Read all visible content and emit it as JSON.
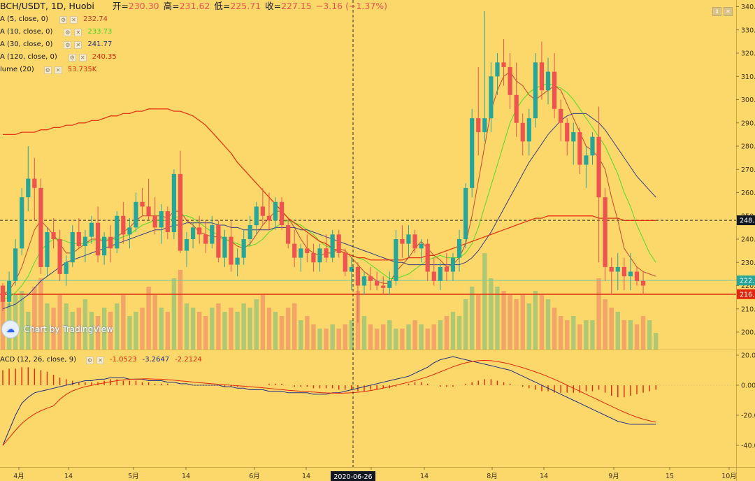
{
  "header": {
    "symbol": "BCH/USDT, 1D, Huobi",
    "open_label": "开=",
    "open": "230.30",
    "high_label": "高=",
    "high": "231.62",
    "low_label": "低=",
    "low": "225.71",
    "close_label": "收=",
    "close": "227.15",
    "change": "−3.16 (−1.37%)"
  },
  "legends": [
    {
      "label": "A (5, close, 0)",
      "value": "232.74",
      "color": "#c0392b"
    },
    {
      "label": "A (10, close, 0)",
      "value": "233.73",
      "color": "#3ddc1e"
    },
    {
      "label": "A (30, close, 0)",
      "value": "241.77",
      "color": "#1f2d8a"
    },
    {
      "label": "A (120, close, 0)",
      "value": "240.35",
      "color": "#e2270c"
    },
    {
      "label": "lume (20)",
      "value": "53.735K",
      "color": "#e2270c"
    }
  ],
  "macd_legend": {
    "label": "ACD (12, 26, close, 9)",
    "values": [
      "-1.0523",
      "-3.2647",
      "-2.2124"
    ],
    "colors": [
      "#e2270c",
      "#1f2d8a",
      "#e2270c"
    ]
  },
  "watermark": "Chart by TradingView",
  "price_axis": {
    "ticks": [
      200,
      210,
      220,
      230,
      240,
      250,
      260,
      270,
      280,
      290,
      300,
      310,
      320,
      330,
      340
    ],
    "labels": [
      "200.",
      "210.",
      "220.",
      "230.",
      "240.",
      "250.",
      "260.",
      "270.",
      "280.",
      "290.",
      "300.",
      "310.",
      "320.",
      "330.",
      "340."
    ],
    "badges": [
      {
        "label": "248.",
        "value": 248.1,
        "bg": "#131722",
        "fg": "#ffffff"
      },
      {
        "label": "222.",
        "value": 222.2,
        "bg": "#26a69a",
        "fg": "#ffffff"
      },
      {
        "label": "216.",
        "value": 216.3,
        "bg": "#e2270c",
        "fg": "#ffffff"
      }
    ]
  },
  "macd_axis": {
    "ticks": [
      20,
      0,
      -20,
      -40
    ],
    "labels": [
      "20.00",
      "0.00",
      "-20.0",
      "-40.0"
    ]
  },
  "time_axis": {
    "labels": [
      "4月",
      "14",
      "5月",
      "14",
      "6月",
      "14",
      "7月",
      "14",
      "8月",
      "14",
      "9月",
      "15",
      "10月"
    ],
    "crosshair_label": "2020-06-26"
  },
  "lines": {
    "hline_price": 248.1,
    "support_price": 216.3,
    "last_price": 222.2
  },
  "chart_data": {
    "type": "candlestick",
    "title": "BCH/USDT, 1D, Huobi",
    "ylim": [
      190,
      345
    ],
    "candles": [
      [
        220,
        221,
        209,
        213
      ],
      [
        213,
        226,
        211,
        222
      ],
      [
        222,
        240,
        220,
        236
      ],
      [
        236,
        262,
        233,
        258
      ],
      [
        258,
        280,
        252,
        266
      ],
      [
        266,
        275,
        248,
        262
      ],
      [
        262,
        266,
        225,
        228
      ],
      [
        228,
        245,
        224,
        243
      ],
      [
        243,
        249,
        236,
        240
      ],
      [
        240,
        244,
        222,
        225
      ],
      [
        225,
        233,
        220,
        230
      ],
      [
        230,
        246,
        228,
        243
      ],
      [
        243,
        249,
        236,
        237
      ],
      [
        237,
        244,
        230,
        241
      ],
      [
        241,
        250,
        238,
        247
      ],
      [
        247,
        254,
        230,
        233
      ],
      [
        233,
        243,
        229,
        241
      ],
      [
        241,
        246,
        230,
        236
      ],
      [
        236,
        252,
        234,
        250
      ],
      [
        250,
        256,
        238,
        242
      ],
      [
        242,
        249,
        236,
        245
      ],
      [
        245,
        260,
        243,
        256
      ],
      [
        256,
        262,
        250,
        254
      ],
      [
        254,
        266,
        248,
        250
      ],
      [
        250,
        258,
        242,
        245
      ],
      [
        245,
        255,
        238,
        252
      ],
      [
        252,
        254,
        240,
        243
      ],
      [
        243,
        270,
        240,
        268
      ],
      [
        268,
        278,
        234,
        235
      ],
      [
        235,
        243,
        228,
        240
      ],
      [
        240,
        247,
        236,
        245
      ],
      [
        245,
        250,
        238,
        242
      ],
      [
        242,
        248,
        234,
        238
      ],
      [
        238,
        250,
        236,
        246
      ],
      [
        246,
        248,
        230,
        232
      ],
      [
        232,
        244,
        228,
        241
      ],
      [
        241,
        248,
        226,
        229
      ],
      [
        229,
        236,
        224,
        232
      ],
      [
        232,
        244,
        229,
        240
      ],
      [
        240,
        250,
        237,
        246
      ],
      [
        246,
        256,
        242,
        254
      ],
      [
        254,
        262,
        246,
        250
      ],
      [
        250,
        260,
        244,
        248
      ],
      [
        248,
        258,
        244,
        256
      ],
      [
        256,
        258,
        244,
        246
      ],
      [
        246,
        249,
        236,
        238
      ],
      [
        238,
        244,
        228,
        232
      ],
      [
        232,
        238,
        226,
        236
      ],
      [
        236,
        242,
        230,
        234
      ],
      [
        234,
        238,
        226,
        230
      ],
      [
        230,
        238,
        226,
        236
      ],
      [
        236,
        242,
        230,
        232
      ],
      [
        232,
        244,
        230,
        242
      ],
      [
        242,
        244,
        232,
        234
      ],
      [
        234,
        236,
        224,
        226
      ],
      [
        226,
        232,
        218,
        228
      ],
      [
        228,
        230,
        204,
        220
      ],
      [
        220,
        226,
        216,
        224
      ],
      [
        224,
        228,
        218,
        222
      ],
      [
        222,
        226,
        218,
        220
      ],
      [
        220,
        224,
        216,
        219
      ],
      [
        219,
        226,
        216,
        222
      ],
      [
        222,
        244,
        220,
        240
      ],
      [
        240,
        246,
        232,
        238
      ],
      [
        238,
        246,
        232,
        242
      ],
      [
        242,
        244,
        234,
        236
      ],
      [
        236,
        240,
        230,
        238
      ],
      [
        238,
        240,
        222,
        226
      ],
      [
        226,
        232,
        220,
        222
      ],
      [
        222,
        230,
        218,
        228
      ],
      [
        228,
        234,
        222,
        226
      ],
      [
        226,
        234,
        222,
        232
      ],
      [
        232,
        244,
        226,
        240
      ],
      [
        240,
        264,
        236,
        262
      ],
      [
        262,
        296,
        258,
        292
      ],
      [
        292,
        314,
        276,
        286
      ],
      [
        286,
        338,
        282,
        292
      ],
      [
        292,
        316,
        286,
        310
      ],
      [
        310,
        320,
        302,
        316
      ],
      [
        316,
        326,
        306,
        314
      ],
      [
        314,
        320,
        296,
        302
      ],
      [
        302,
        316,
        284,
        290
      ],
      [
        290,
        294,
        276,
        282
      ],
      [
        282,
        296,
        276,
        292
      ],
      [
        292,
        320,
        288,
        316
      ],
      [
        316,
        325,
        300,
        304
      ],
      [
        304,
        318,
        298,
        312
      ],
      [
        312,
        320,
        292,
        296
      ],
      [
        296,
        300,
        282,
        290
      ],
      [
        290,
        292,
        276,
        282
      ],
      [
        282,
        290,
        272,
        286
      ],
      [
        286,
        288,
        268,
        272
      ],
      [
        272,
        280,
        262,
        276
      ],
      [
        276,
        286,
        272,
        284
      ],
      [
        284,
        297,
        230,
        258
      ],
      [
        258,
        262,
        222,
        228
      ],
      [
        228,
        232,
        216,
        226
      ],
      [
        226,
        234,
        218,
        228
      ],
      [
        228,
        232,
        218,
        224
      ],
      [
        224,
        234,
        218,
        226
      ],
      [
        226,
        228,
        220,
        222
      ],
      [
        222,
        226,
        216,
        220
      ]
    ],
    "ma_series": [
      {
        "name": "MA 5",
        "color": "#c0392b",
        "values": [
          216,
          218,
          222,
          228,
          236,
          244,
          248,
          245,
          242,
          238,
          234,
          234,
          236,
          238,
          240,
          240,
          239,
          240,
          241,
          243,
          245,
          248,
          250,
          250,
          250,
          250,
          249,
          252,
          252,
          248,
          246,
          243,
          242,
          241,
          241,
          240,
          239,
          237,
          236,
          238,
          242,
          246,
          249,
          252,
          252,
          249,
          245,
          240,
          236,
          234,
          233,
          234,
          234,
          236,
          235,
          232,
          229,
          226,
          224,
          222,
          221,
          221,
          226,
          229,
          232,
          236,
          239,
          236,
          233,
          231,
          228,
          229,
          232,
          238,
          250,
          265,
          280,
          295,
          304,
          310,
          312,
          308,
          306,
          302,
          300,
          302,
          304,
          306,
          304,
          298,
          292,
          286,
          280,
          278,
          275,
          270,
          258,
          248,
          236,
          232,
          228,
          226,
          225,
          224
        ]
      },
      {
        "name": "MA 10",
        "color": "#3ddc1e",
        "values": [
          214,
          215,
          217,
          220,
          224,
          230,
          235,
          238,
          240,
          240,
          239,
          238,
          238,
          238,
          239,
          240,
          240,
          240,
          240,
          241,
          242,
          244,
          246,
          247,
          248,
          248,
          248,
          249,
          250,
          250,
          249,
          247,
          245,
          243,
          242,
          240,
          239,
          238,
          237,
          237,
          238,
          240,
          243,
          245,
          247,
          248,
          247,
          246,
          244,
          242,
          239,
          237,
          236,
          235,
          234,
          233,
          232,
          231,
          229,
          227,
          225,
          223,
          223,
          224,
          225,
          227,
          229,
          231,
          232,
          233,
          232,
          232,
          232,
          234,
          238,
          245,
          254,
          263,
          272,
          281,
          290,
          296,
          300,
          303,
          305,
          306,
          307,
          306,
          305,
          303,
          300,
          296,
          292,
          288,
          284,
          280,
          274,
          268,
          260,
          254,
          246,
          240,
          234,
          230
        ]
      },
      {
        "name": "MA 30",
        "color": "#1f2d8a",
        "values": [
          210,
          211,
          212,
          214,
          216,
          219,
          222,
          224,
          226,
          228,
          230,
          231,
          232,
          233,
          234,
          235,
          236,
          237,
          238,
          239,
          240,
          241,
          242,
          243,
          244,
          244,
          245,
          246,
          246,
          247,
          247,
          247,
          247,
          247,
          246,
          246,
          245,
          245,
          244,
          244,
          244,
          244,
          244,
          245,
          245,
          245,
          245,
          244,
          244,
          243,
          242,
          241,
          240,
          239,
          238,
          237,
          236,
          235,
          234,
          233,
          232,
          231,
          230,
          230,
          229,
          229,
          229,
          229,
          229,
          229,
          229,
          229,
          229,
          230,
          232,
          235,
          239,
          243,
          248,
          253,
          258,
          263,
          268,
          273,
          277,
          281,
          285,
          288,
          291,
          293,
          294,
          294,
          294,
          292,
          290,
          287,
          283,
          279,
          275,
          271,
          267,
          264,
          261,
          258
        ]
      },
      {
        "name": "MA 120",
        "color": "#e2270c",
        "values": [
          285,
          285,
          285,
          286,
          286,
          286,
          287,
          287,
          288,
          288,
          289,
          289,
          290,
          290,
          291,
          291,
          292,
          293,
          293,
          294,
          294,
          295,
          295,
          296,
          296,
          296,
          296,
          295,
          295,
          294,
          293,
          291,
          289,
          286,
          283,
          280,
          277,
          273,
          270,
          267,
          264,
          261,
          258,
          255,
          252,
          249,
          247,
          245,
          243,
          241,
          239,
          238,
          236,
          235,
          234,
          233,
          232,
          232,
          231,
          231,
          231,
          231,
          231,
          231,
          232,
          232,
          232,
          233,
          233,
          234,
          235,
          236,
          237,
          238,
          239,
          240,
          241,
          242,
          243,
          244,
          245,
          246,
          247,
          248,
          249,
          249,
          250,
          250,
          250,
          250,
          250,
          250,
          250,
          250,
          249,
          249,
          249,
          249,
          248,
          248,
          248,
          248,
          248,
          248
        ]
      }
    ],
    "volume": {
      "name": "Volume (20)",
      "values": [
        24,
        22,
        26,
        28,
        18,
        30,
        34,
        22,
        20,
        26,
        22,
        18,
        20,
        24,
        18,
        16,
        20,
        18,
        22,
        26,
        16,
        18,
        20,
        30,
        26,
        20,
        18,
        34,
        38,
        22,
        20,
        18,
        16,
        20,
        22,
        18,
        20,
        18,
        22,
        20,
        24,
        26,
        20,
        18,
        16,
        20,
        22,
        14,
        16,
        12,
        10,
        10,
        12,
        10,
        12,
        14,
        28,
        16,
        12,
        10,
        12,
        14,
        10,
        10,
        12,
        14,
        12,
        10,
        12,
        14,
        16,
        18,
        16,
        24,
        30,
        26,
        46,
        34,
        30,
        28,
        26,
        24,
        26,
        22,
        28,
        26,
        24,
        20,
        16,
        14,
        16,
        12,
        14,
        14,
        34,
        24,
        20,
        18,
        14,
        14,
        12,
        16,
        14,
        8
      ]
    },
    "macd": {
      "name": "MACD (12, 26, close, 9)",
      "hist": [
        10,
        11,
        11,
        12,
        12,
        11,
        10,
        9,
        7,
        5,
        4,
        3,
        2,
        2,
        2,
        2,
        3,
        4,
        4,
        3,
        3,
        3,
        2,
        2,
        1,
        1,
        1,
        0,
        0,
        0,
        0,
        0,
        0,
        0,
        0,
        -1,
        -1,
        -1,
        0,
        0,
        0,
        0,
        1,
        1,
        1,
        0,
        -1,
        -1,
        -1,
        -2,
        -2,
        -2,
        -2,
        -3,
        -3,
        -3,
        -4,
        -4,
        -3,
        -3,
        -2,
        -2,
        -1,
        0,
        1,
        2,
        2,
        1,
        0,
        -1,
        -1,
        -1,
        0,
        1,
        2,
        3,
        4,
        4,
        3,
        2,
        1,
        0,
        -1,
        -2,
        -3,
        -4,
        -4,
        -5,
        -5,
        -5,
        -5,
        -5,
        -4,
        -4,
        -3,
        -5,
        -7,
        -8,
        -8,
        -7,
        -6,
        -5,
        -4,
        -3
      ],
      "macd_line": [
        -40,
        -30,
        -20,
        -12,
        -8,
        -5,
        -4,
        -3,
        -2,
        -1,
        0,
        1,
        2,
        3,
        3,
        4,
        4,
        5,
        5,
        5,
        4,
        4,
        4,
        3,
        3,
        3,
        2,
        2,
        1,
        1,
        0,
        0,
        0,
        0,
        0,
        -1,
        -1,
        -2,
        -2,
        -3,
        -3,
        -3,
        -4,
        -4,
        -4,
        -5,
        -5,
        -5,
        -5,
        -6,
        -6,
        -6,
        -5,
        -5,
        -4,
        -3,
        -2,
        -1,
        0,
        1,
        2,
        3,
        4,
        5,
        6,
        8,
        10,
        12,
        15,
        17,
        18,
        19,
        18,
        17,
        16,
        15,
        14,
        13,
        12,
        11,
        10,
        8,
        6,
        4,
        2,
        0,
        -2,
        -4,
        -6,
        -8,
        -10,
        -12,
        -14,
        -16,
        -18,
        -20,
        -22,
        -24,
        -25,
        -26,
        -26,
        -26,
        -26,
        -26
      ]
    }
  }
}
